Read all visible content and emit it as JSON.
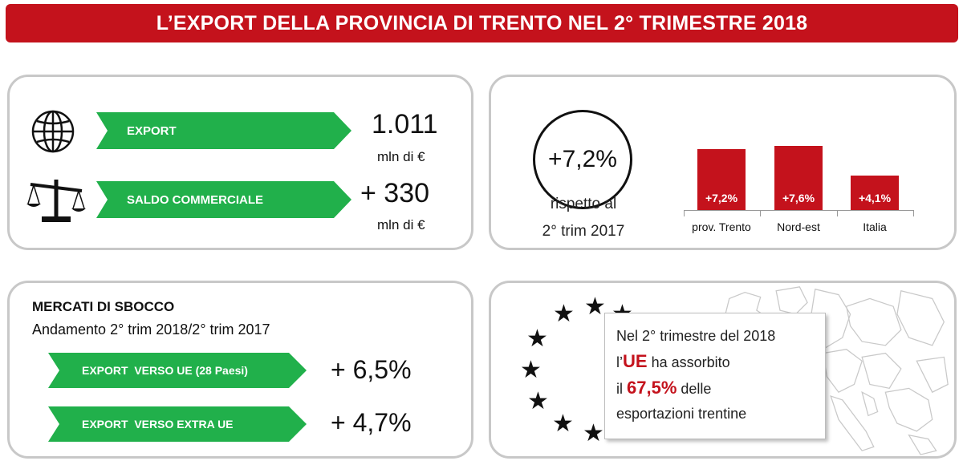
{
  "header": {
    "title": "L’EXPORT DELLA PROVINCIA DI TRENTO NEL 2° TRIMESTRE 2018"
  },
  "summary": {
    "export": {
      "label": "EXPORT",
      "value": "1.011",
      "unit": "mln di €"
    },
    "saldo": {
      "label": "SALDO COMMERCIALE",
      "value": "+ 330",
      "unit": "mln di €"
    }
  },
  "growth": {
    "value": "+7,2%",
    "caption_line1": "rispetto al",
    "caption_line2": "2° trim 2017"
  },
  "chart_data": {
    "type": "bar",
    "categories": [
      "prov. Trento",
      "Nord-est",
      "Italia"
    ],
    "values": [
      7.2,
      7.6,
      4.1
    ],
    "data_labels": [
      "+7,2%",
      "+7,6%",
      "+4,1%"
    ],
    "title": "",
    "xlabel": "",
    "ylabel": "",
    "ylim": [
      0,
      8
    ],
    "grid": false,
    "color": "#c4121c"
  },
  "mercati": {
    "title": "MERCATI DI SBOCCO",
    "subtitle": "Andamento 2° trim 2018/2° trim 2017",
    "items": [
      {
        "label": "EXPORT  VERSO UE (28 Paesi)",
        "value": "+ 6,5%"
      },
      {
        "label": "EXPORT  VERSO EXTRA UE",
        "value": "+ 4,7%"
      }
    ]
  },
  "ue": {
    "line1": "Nel 2° trimestre del 2018",
    "line2_pre": "l’",
    "line2_strong": "UE",
    "line2_post": " ha assorbito",
    "line3_pre": "il ",
    "line3_strong": "67,5%",
    "line3_post": " delle",
    "line4": "esportazioni trentine"
  },
  "icons": {
    "globe": "globe-icon",
    "scale": "balance-scale-icon",
    "stars": "eu-stars-icon",
    "map": "europe-map-icon"
  },
  "colors": {
    "accent_red": "#c4121c",
    "arrow_green": "#21b04b",
    "panel_border": "#c8c8c8"
  }
}
